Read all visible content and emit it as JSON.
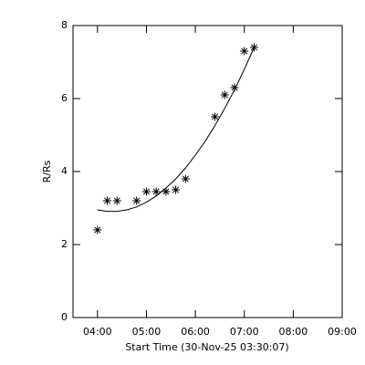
{
  "chart_data": {
    "type": "scatter",
    "xlabel": "Start Time (30-Nov-25 03:30:07)",
    "ylabel": "R/Rs",
    "x": [
      4.0,
      4.2,
      4.4,
      4.8,
      5.0,
      5.2,
      5.4,
      5.6,
      5.8,
      6.4,
      6.6,
      6.8,
      7.0,
      7.2
    ],
    "values": [
      2.4,
      3.2,
      3.2,
      3.2,
      3.45,
      3.45,
      3.45,
      3.5,
      3.8,
      5.5,
      6.1,
      6.3,
      7.3,
      7.4
    ],
    "fit": {
      "x": [
        4.0,
        4.2,
        4.4,
        4.6,
        4.8,
        5.0,
        5.2,
        5.4,
        5.6,
        5.8,
        6.0,
        6.2,
        6.4,
        6.6,
        6.8,
        7.0,
        7.2
      ],
      "values": [
        2.95,
        2.91,
        2.91,
        2.95,
        3.03,
        3.16,
        3.33,
        3.55,
        3.8,
        4.1,
        4.45,
        4.83,
        5.26,
        5.73,
        6.24,
        6.8,
        7.4
      ]
    },
    "color": "#000000",
    "xlim": [
      3.5,
      9.0
    ],
    "xticks": [
      {
        "value": 4,
        "label": "04:00"
      },
      {
        "value": 5,
        "label": "05:00"
      },
      {
        "value": 6,
        "label": "06:00"
      },
      {
        "value": 7,
        "label": "07:00"
      },
      {
        "value": 8,
        "label": "08:00"
      },
      {
        "value": 9,
        "label": "09:00"
      }
    ],
    "ylim": [
      0,
      8
    ],
    "yticks": [
      0,
      2,
      4,
      6,
      8
    ]
  }
}
